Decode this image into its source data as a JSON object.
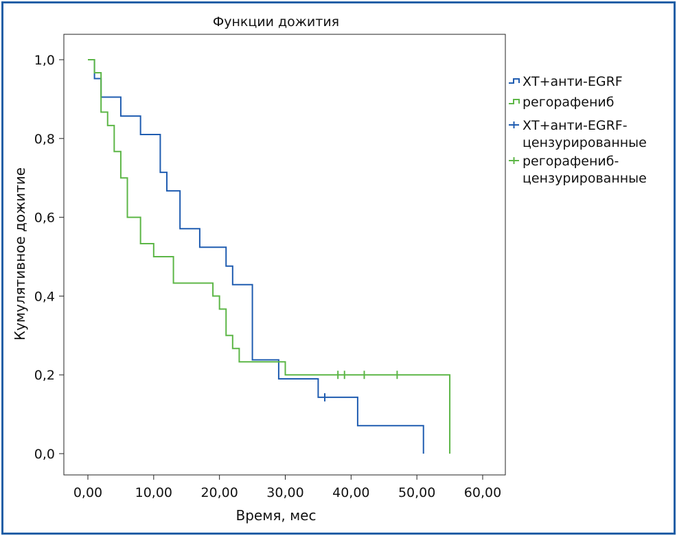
{
  "chart_data": {
    "type": "line",
    "subtype": "kaplan-meier step",
    "title": "Функции дожития",
    "xlabel": "Время, мес",
    "ylabel": "Кумулятивное дожитие",
    "xlim": [
      -3,
      63
    ],
    "ylim": [
      -0.06,
      1.06
    ],
    "xticks": [
      0,
      10,
      20,
      30,
      40,
      50,
      60
    ],
    "xtick_labels": [
      "0,00",
      "10,00",
      "20,00",
      "30,00",
      "40,00",
      "50,00",
      "60,00"
    ],
    "yticks": [
      0,
      0.2,
      0.4,
      0.6,
      0.8,
      1.0
    ],
    "ytick_labels": [
      "0,0",
      "0,2",
      "0,4",
      "0,6",
      "0,8",
      "1,0"
    ],
    "grid": false,
    "legend_position": "right",
    "legend": [
      "ХТ+анти-EGRF",
      "регорафениб",
      "ХТ+анти-EGRF-\nцензурированные",
      "регорафениб-\nцензурированные"
    ],
    "series": [
      {
        "name": "ХТ+анти-EGRF",
        "color": "#1f5cb0",
        "steps": [
          [
            0,
            1.0
          ],
          [
            1,
            0.952
          ],
          [
            2,
            0.905
          ],
          [
            5,
            0.857
          ],
          [
            8,
            0.81
          ],
          [
            11,
            0.714
          ],
          [
            12,
            0.667
          ],
          [
            14,
            0.571
          ],
          [
            17,
            0.524
          ],
          [
            21,
            0.476
          ],
          [
            22,
            0.429
          ],
          [
            25,
            0.238
          ],
          [
            29,
            0.19
          ],
          [
            35,
            0.143
          ],
          [
            41,
            0.071
          ],
          [
            51,
            0.0
          ]
        ],
        "censored": [
          [
            36,
            0.143
          ]
        ]
      },
      {
        "name": "регорафениб",
        "color": "#5cb646",
        "steps": [
          [
            0,
            1.0
          ],
          [
            1,
            0.967
          ],
          [
            2,
            0.867
          ],
          [
            3,
            0.833
          ],
          [
            4,
            0.767
          ],
          [
            5,
            0.7
          ],
          [
            6,
            0.6
          ],
          [
            8,
            0.533
          ],
          [
            10,
            0.5
          ],
          [
            13,
            0.433
          ],
          [
            19,
            0.4
          ],
          [
            20,
            0.367
          ],
          [
            21,
            0.3
          ],
          [
            22,
            0.267
          ],
          [
            23,
            0.233
          ],
          [
            30,
            0.2
          ],
          [
            55,
            0.0
          ]
        ],
        "censored": [
          [
            38,
            0.2
          ],
          [
            39,
            0.2
          ],
          [
            42,
            0.2
          ],
          [
            47,
            0.2
          ]
        ]
      }
    ]
  }
}
